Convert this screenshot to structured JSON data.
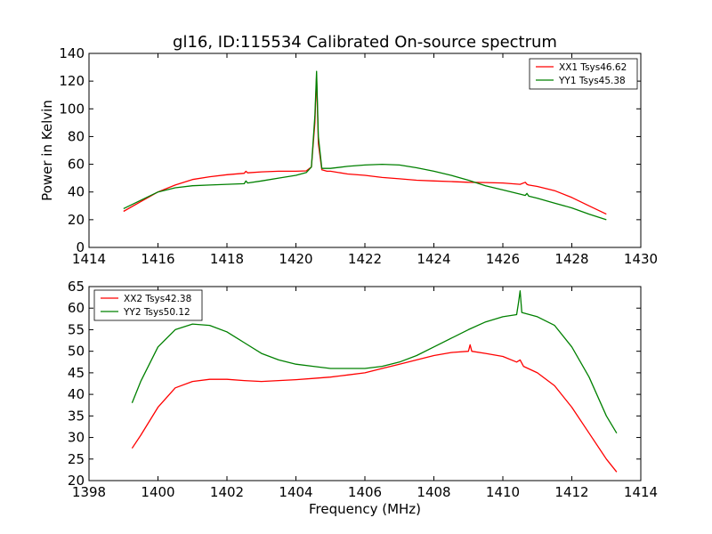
{
  "figure": {
    "title": "gl16, ID:115534 Calibrated On-source spectrum",
    "ylabel": "Power in Kelvin",
    "xlabel": "Frequency (MHz)"
  },
  "chart_data": [
    {
      "type": "line",
      "xlim": [
        1414,
        1430
      ],
      "ylim": [
        0,
        140
      ],
      "xticks": [
        "1414",
        "1416",
        "1418",
        "1420",
        "1422",
        "1424",
        "1426",
        "1428",
        "1430"
      ],
      "yticks": [
        "0",
        "20",
        "40",
        "60",
        "80",
        "100",
        "120",
        "140"
      ],
      "grid": false,
      "legend_position": "top-right",
      "series": [
        {
          "name": "XX1 Tsys46.62",
          "color": "#ff0000",
          "x": [
            1415.0,
            1415.5,
            1416.0,
            1416.5,
            1417.0,
            1417.5,
            1418.0,
            1418.5,
            1418.55,
            1418.6,
            1419.0,
            1419.5,
            1420.0,
            1420.3,
            1420.45,
            1420.55,
            1420.6,
            1420.65,
            1420.75,
            1420.9,
            1421.0,
            1421.5,
            1422.0,
            1422.5,
            1423.0,
            1423.5,
            1424.0,
            1424.5,
            1425.0,
            1425.5,
            1426.0,
            1426.5,
            1426.65,
            1426.7,
            1426.75,
            1427.0,
            1427.5,
            1428.0,
            1428.5,
            1429.0
          ],
          "y": [
            26,
            33,
            40,
            45,
            49,
            51,
            52.5,
            53.5,
            55,
            53.8,
            54.5,
            55,
            55,
            55.2,
            58,
            90,
            124,
            75,
            56,
            55,
            55,
            53,
            52,
            50.5,
            49.5,
            48.5,
            48,
            47.5,
            47,
            46.8,
            46.5,
            45.5,
            47,
            45.5,
            45,
            44,
            41,
            36,
            30,
            24
          ]
        },
        {
          "name": "YY1 Tsys45.38",
          "color": "#008000",
          "x": [
            1415.0,
            1415.5,
            1416.0,
            1416.5,
            1417.0,
            1417.5,
            1418.0,
            1418.5,
            1418.55,
            1418.6,
            1419.0,
            1419.5,
            1420.0,
            1420.3,
            1420.45,
            1420.55,
            1420.6,
            1420.65,
            1420.75,
            1420.9,
            1421.0,
            1421.5,
            1422.0,
            1422.5,
            1423.0,
            1423.5,
            1424.0,
            1424.5,
            1425.0,
            1425.5,
            1426.0,
            1426.5,
            1426.65,
            1426.7,
            1426.75,
            1427.0,
            1427.5,
            1428.0,
            1428.5,
            1429.0
          ],
          "y": [
            28,
            34,
            40,
            43,
            44.5,
            45,
            45.5,
            46,
            48,
            46.5,
            48,
            50,
            52,
            54,
            58,
            95,
            127,
            80,
            57,
            57,
            57,
            58.5,
            59.5,
            60,
            59.5,
            57.5,
            55,
            52,
            48.5,
            44.5,
            41.5,
            38.5,
            37.5,
            39,
            37,
            35.5,
            32,
            28.5,
            24,
            20
          ]
        }
      ]
    },
    {
      "type": "line",
      "xlim": [
        1398,
        1414
      ],
      "ylim": [
        20,
        65
      ],
      "xticks": [
        "1398",
        "1400",
        "1402",
        "1404",
        "1406",
        "1408",
        "1410",
        "1412",
        "1414"
      ],
      "yticks": [
        "20",
        "25",
        "30",
        "35",
        "40",
        "45",
        "50",
        "55",
        "60",
        "65"
      ],
      "grid": false,
      "legend_position": "top-left",
      "series": [
        {
          "name": "XX2 Tsys42.38",
          "color": "#ff0000",
          "x": [
            1399.25,
            1399.5,
            1400.0,
            1400.5,
            1401.0,
            1401.5,
            1402.0,
            1402.5,
            1403.0,
            1403.5,
            1404.0,
            1404.5,
            1405.0,
            1405.5,
            1406.0,
            1406.5,
            1407.0,
            1407.5,
            1408.0,
            1408.5,
            1409.0,
            1409.05,
            1409.1,
            1409.5,
            1410.0,
            1410.4,
            1410.5,
            1410.6,
            1411.0,
            1411.5,
            1412.0,
            1412.5,
            1413.0,
            1413.3
          ],
          "y": [
            27.5,
            30.5,
            37,
            41.5,
            43,
            43.5,
            43.5,
            43.2,
            43,
            43.2,
            43.4,
            43.7,
            44,
            44.5,
            45,
            46,
            47,
            48,
            49,
            49.7,
            50,
            51.5,
            50,
            49.5,
            48.8,
            47.5,
            48,
            46.5,
            45,
            42,
            37,
            31,
            25,
            22
          ]
        },
        {
          "name": "YY2 Tsys50.12",
          "color": "#008000",
          "x": [
            1399.25,
            1399.5,
            1400.0,
            1400.5,
            1401.0,
            1401.5,
            1402.0,
            1402.5,
            1403.0,
            1403.5,
            1404.0,
            1404.5,
            1405.0,
            1405.5,
            1406.0,
            1406.5,
            1407.0,
            1407.5,
            1408.0,
            1408.5,
            1409.0,
            1409.5,
            1410.0,
            1410.4,
            1410.45,
            1410.5,
            1410.55,
            1411.0,
            1411.5,
            1412.0,
            1412.5,
            1413.0,
            1413.3
          ],
          "y": [
            38,
            43,
            51,
            55,
            56.3,
            56,
            54.5,
            52,
            49.5,
            48,
            47,
            46.5,
            46,
            46,
            46,
            46.5,
            47.5,
            49,
            51,
            53,
            55,
            56.8,
            58,
            58.5,
            61,
            64,
            59,
            58,
            56,
            51,
            44,
            35,
            31
          ]
        }
      ]
    }
  ]
}
